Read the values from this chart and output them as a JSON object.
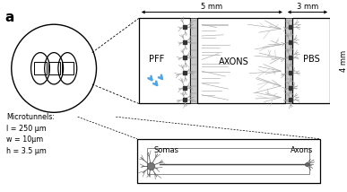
{
  "bg_color": "#ffffff",
  "label_a": "a",
  "text_PFF": "PFF",
  "text_AXONS": "AXONS",
  "text_PBS": "PBS",
  "text_Somas": "Somas",
  "text_Axons": "Axons",
  "text_5mm": "5 mm",
  "text_3mm": "3 mm",
  "text_4mm": "4 mm",
  "microtunnel_text": "Microtunnels:\nl = 250 μm\nw = 10μm\nh = 3.5 μm",
  "blue_color": "#4da6e8",
  "dark_blue": "#2277bb",
  "neuron_color": "#555555",
  "branch_color": "#999999",
  "barrier_color": "#c8c8c8",
  "barrier_line": "#888888"
}
